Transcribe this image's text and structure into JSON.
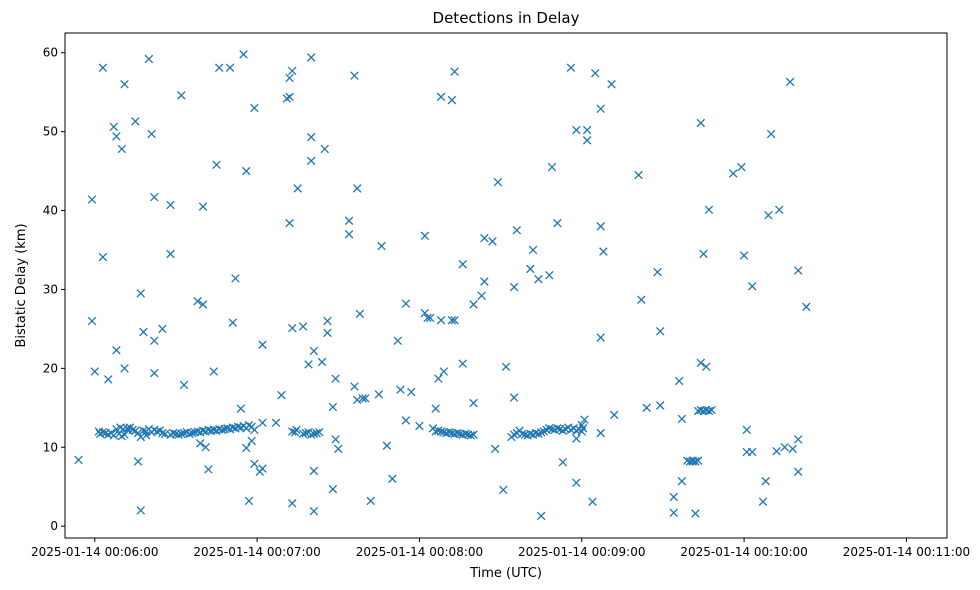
{
  "chart_data": {
    "type": "scatter",
    "title": "Detections in Delay",
    "xlabel": "Time (UTC)",
    "ylabel": "Bistatic Delay (km)",
    "x_unit": "seconds after 2025-01-14 00:06:00",
    "xlim": [
      -11,
      315
    ],
    "ylim": [
      -1.5,
      62.5
    ],
    "grid": false,
    "marker": "x",
    "color": "#1f77b4",
    "x_ticks": [
      {
        "value": 0,
        "label": "2025-01-14 00:06:00"
      },
      {
        "value": 60,
        "label": "2025-01-14 00:07:00"
      },
      {
        "value": 120,
        "label": "2025-01-14 00:08:00"
      },
      {
        "value": 180,
        "label": "2025-01-14 00:09:00"
      },
      {
        "value": 240,
        "label": "2025-01-14 00:10:00"
      },
      {
        "value": 300,
        "label": "2025-01-14 00:11:00"
      }
    ],
    "y_ticks": [
      {
        "value": 0,
        "label": "0"
      },
      {
        "value": 10,
        "label": "10"
      },
      {
        "value": 20,
        "label": "20"
      },
      {
        "value": 30,
        "label": "30"
      },
      {
        "value": 40,
        "label": "40"
      },
      {
        "value": 50,
        "label": "50"
      },
      {
        "value": 60,
        "label": "60"
      }
    ],
    "points": [
      [
        -6,
        8.4
      ],
      [
        -1,
        41.4
      ],
      [
        -1,
        26
      ],
      [
        0,
        19.6
      ],
      [
        3,
        58.1
      ],
      [
        3,
        34.1
      ],
      [
        5,
        18.6
      ],
      [
        7,
        50.6
      ],
      [
        8,
        49.4
      ],
      [
        8,
        22.3
      ],
      [
        10,
        47.8
      ],
      [
        11,
        56
      ],
      [
        11,
        20
      ],
      [
        15,
        51.3
      ],
      [
        16,
        8.2
      ],
      [
        17,
        29.5
      ],
      [
        17,
        2
      ],
      [
        18,
        24.6
      ],
      [
        19,
        11.5
      ],
      [
        20,
        59.2
      ],
      [
        21,
        49.7
      ],
      [
        22,
        19.4
      ],
      [
        22,
        23.5
      ],
      [
        22,
        41.7
      ],
      [
        25,
        25
      ],
      [
        28,
        40.7
      ],
      [
        28,
        34.5
      ],
      [
        32,
        54.6
      ],
      [
        33,
        17.9
      ],
      [
        38,
        28.5
      ],
      [
        39,
        10.5
      ],
      [
        40,
        40.5
      ],
      [
        40,
        28.1
      ],
      [
        41,
        10
      ],
      [
        42,
        7.2
      ],
      [
        44,
        19.6
      ],
      [
        45,
        45.8
      ],
      [
        46,
        58.1
      ],
      [
        50,
        58.1
      ],
      [
        51,
        25.8
      ],
      [
        52,
        31.4
      ],
      [
        54,
        14.9
      ],
      [
        55,
        59.8
      ],
      [
        56,
        9.9
      ],
      [
        56,
        45
      ],
      [
        57,
        3.2
      ],
      [
        58,
        10.8
      ],
      [
        59,
        7.9
      ],
      [
        59,
        53
      ],
      [
        61,
        6.9
      ],
      [
        62,
        23
      ],
      [
        62,
        7.3
      ],
      [
        62,
        13.1
      ],
      [
        67,
        13.1
      ],
      [
        69,
        16.6
      ],
      [
        71,
        54.2
      ],
      [
        72,
        56.8
      ],
      [
        72,
        54.4
      ],
      [
        72,
        38.4
      ],
      [
        73,
        57.7
      ],
      [
        73,
        25.1
      ],
      [
        73,
        2.9
      ],
      [
        73,
        12
      ],
      [
        75,
        42.8
      ],
      [
        77,
        25.3
      ],
      [
        79,
        20.5
      ],
      [
        80,
        59.4
      ],
      [
        80,
        49.3
      ],
      [
        80,
        46.3
      ],
      [
        81,
        22.2
      ],
      [
        81,
        7
      ],
      [
        81,
        1.9
      ],
      [
        84,
        20.8
      ],
      [
        85,
        47.8
      ],
      [
        86,
        24.5
      ],
      [
        86,
        26
      ],
      [
        88,
        15.1
      ],
      [
        88,
        4.7
      ],
      [
        89,
        18.7
      ],
      [
        89,
        11
      ],
      [
        90,
        9.8
      ],
      [
        94,
        38.7
      ],
      [
        94,
        37
      ],
      [
        96,
        17.7
      ],
      [
        96,
        57.1
      ],
      [
        97,
        16
      ],
      [
        97,
        42.8
      ],
      [
        98,
        26.9
      ],
      [
        99,
        16.2
      ],
      [
        100,
        16.2
      ],
      [
        102,
        3.2
      ],
      [
        105,
        16.7
      ],
      [
        106,
        35.5
      ],
      [
        108,
        10.2
      ],
      [
        110,
        6
      ],
      [
        112,
        23.5
      ],
      [
        113,
        17.3
      ],
      [
        115,
        13.4
      ],
      [
        115,
        28.2
      ],
      [
        117,
        17
      ],
      [
        120,
        12.7
      ],
      [
        122,
        36.8
      ],
      [
        122,
        27
      ],
      [
        123,
        26.4
      ],
      [
        124,
        26.4
      ],
      [
        125,
        12.4
      ],
      [
        126,
        14.9
      ],
      [
        127,
        18.7
      ],
      [
        128,
        26.1
      ],
      [
        128,
        54.4
      ],
      [
        129,
        19.6
      ],
      [
        132,
        26.1
      ],
      [
        132,
        54
      ],
      [
        133,
        26.1
      ],
      [
        133,
        57.6
      ],
      [
        136,
        20.6
      ],
      [
        136,
        33.2
      ],
      [
        140,
        28.1
      ],
      [
        140,
        15.6
      ],
      [
        143,
        29.2
      ],
      [
        144,
        31
      ],
      [
        144,
        36.5
      ],
      [
        147,
        36.1
      ],
      [
        148,
        9.8
      ],
      [
        149,
        43.6
      ],
      [
        151,
        4.6
      ],
      [
        152,
        20.2
      ],
      [
        155,
        30.3
      ],
      [
        155,
        16.3
      ],
      [
        156,
        37.5
      ],
      [
        161,
        32.6
      ],
      [
        162,
        35
      ],
      [
        164,
        31.3
      ],
      [
        165,
        1.3
      ],
      [
        168,
        31.8
      ],
      [
        169,
        45.5
      ],
      [
        171,
        38.4
      ],
      [
        173,
        8.1
      ],
      [
        176,
        58.1
      ],
      [
        178,
        5.5
      ],
      [
        178,
        50.2
      ],
      [
        178,
        11.1
      ],
      [
        180,
        12.8
      ],
      [
        181,
        13.5
      ],
      [
        182,
        50.2
      ],
      [
        182,
        48.9
      ],
      [
        184,
        3.1
      ],
      [
        185,
        57.4
      ],
      [
        187,
        38
      ],
      [
        187,
        52.9
      ],
      [
        187,
        23.9
      ],
      [
        187,
        11.8
      ],
      [
        188,
        34.8
      ],
      [
        191,
        56
      ],
      [
        192,
        14.1
      ],
      [
        201,
        44.5
      ],
      [
        202,
        28.7
      ],
      [
        204,
        15
      ],
      [
        208,
        32.2
      ],
      [
        209,
        15.3
      ],
      [
        209,
        24.7
      ],
      [
        214,
        3.7
      ],
      [
        214,
        1.7
      ],
      [
        216,
        18.4
      ],
      [
        217,
        13.6
      ],
      [
        217,
        5.7
      ],
      [
        219,
        8.3
      ],
      [
        221,
        8.2
      ],
      [
        222,
        8.2
      ],
      [
        222,
        1.6
      ],
      [
        223,
        14.6
      ],
      [
        224,
        51.1
      ],
      [
        224,
        20.7
      ],
      [
        225,
        34.5
      ],
      [
        226,
        20.2
      ],
      [
        227,
        40.1
      ],
      [
        236,
        44.7
      ],
      [
        239,
        45.5
      ],
      [
        240,
        34.3
      ],
      [
        241,
        12.2
      ],
      [
        241,
        9.4
      ],
      [
        243,
        9.4
      ],
      [
        243,
        30.4
      ],
      [
        247,
        3.1
      ],
      [
        248,
        5.7
      ],
      [
        249,
        39.4
      ],
      [
        250,
        49.7
      ],
      [
        252,
        9.5
      ],
      [
        253,
        40.1
      ],
      [
        255,
        10
      ],
      [
        257,
        56.3
      ],
      [
        258,
        9.8
      ],
      [
        260,
        6.9
      ],
      [
        260,
        32.4
      ],
      [
        260,
        11
      ],
      [
        263,
        27.8
      ],
      [
        1.5,
        12
      ],
      [
        2,
        11.7
      ],
      [
        3,
        11.9
      ],
      [
        4,
        11.8
      ],
      [
        5,
        11.6
      ],
      [
        6,
        11.8
      ],
      [
        7,
        11.5
      ],
      [
        8,
        12.3
      ],
      [
        9,
        11.7
      ],
      [
        9.5,
        12.5
      ],
      [
        10,
        11.4
      ],
      [
        10.5,
        12.3
      ],
      [
        11,
        11.6
      ],
      [
        12,
        12.4
      ],
      [
        12.5,
        12.1
      ],
      [
        13,
        12.5
      ],
      [
        14,
        12.2
      ],
      [
        15,
        12.1
      ],
      [
        16,
        11.8
      ],
      [
        17,
        11.3
      ],
      [
        18,
        12.1
      ],
      [
        19,
        12
      ],
      [
        20,
        12.3
      ],
      [
        21,
        11.9
      ],
      [
        22,
        12.2
      ],
      [
        23,
        12
      ],
      [
        24,
        12.1
      ],
      [
        25,
        11.8
      ],
      [
        26,
        11.7
      ],
      [
        28,
        11.6
      ],
      [
        29,
        11.8
      ],
      [
        30,
        11.7
      ],
      [
        31,
        11.6
      ],
      [
        32,
        11.7
      ],
      [
        33,
        11.8
      ],
      [
        34,
        11.9
      ],
      [
        35,
        11.7
      ],
      [
        36,
        11.8
      ],
      [
        37,
        11.9
      ],
      [
        38,
        12
      ],
      [
        39,
        11.9
      ],
      [
        40,
        12.1
      ],
      [
        41,
        12
      ],
      [
        42,
        12.2
      ],
      [
        43,
        12.1
      ],
      [
        44,
        12.2
      ],
      [
        45,
        12.1
      ],
      [
        46,
        12.3
      ],
      [
        47,
        12.2
      ],
      [
        48,
        12.3
      ],
      [
        49,
        12.4
      ],
      [
        50,
        12.3
      ],
      [
        51,
        12.5
      ],
      [
        52,
        12.4
      ],
      [
        53,
        12.6
      ],
      [
        54,
        12.5
      ],
      [
        55,
        12.7
      ],
      [
        56,
        12.4
      ],
      [
        57,
        12.8
      ],
      [
        58,
        12.6
      ],
      [
        59,
        12.2
      ],
      [
        74,
        11.9
      ],
      [
        74.5,
        12.2
      ],
      [
        77,
        11.7
      ],
      [
        78,
        11.8
      ],
      [
        79,
        11.9
      ],
      [
        80,
        11.6
      ],
      [
        81,
        11.7
      ],
      [
        82,
        11.8
      ],
      [
        83,
        11.9
      ],
      [
        126,
        12
      ],
      [
        127,
        12.1
      ],
      [
        128,
        12
      ],
      [
        129,
        11.9
      ],
      [
        130,
        11.8
      ],
      [
        131,
        11.9
      ],
      [
        132,
        11.8
      ],
      [
        133,
        11.7
      ],
      [
        134,
        11.8
      ],
      [
        135,
        11.7
      ],
      [
        136,
        11.6
      ],
      [
        137,
        11.7
      ],
      [
        138,
        11.6
      ],
      [
        139,
        11.5
      ],
      [
        140,
        11.6
      ],
      [
        154,
        11.3
      ],
      [
        155,
        11.6
      ],
      [
        156,
        11.8
      ],
      [
        157,
        12.1
      ],
      [
        158,
        11.7
      ],
      [
        159,
        11.6
      ],
      [
        160,
        11.5
      ],
      [
        161,
        11.7
      ],
      [
        162,
        11.6
      ],
      [
        163,
        11.8
      ],
      [
        164,
        11.7
      ],
      [
        165,
        11.9
      ],
      [
        166,
        12
      ],
      [
        167,
        12.2
      ],
      [
        168,
        12.4
      ],
      [
        169,
        12.3
      ],
      [
        170,
        12.2
      ],
      [
        171,
        12.4
      ],
      [
        172,
        12.3
      ],
      [
        173,
        12.1
      ],
      [
        174,
        12.3
      ],
      [
        175,
        12.5
      ],
      [
        176,
        12.2
      ],
      [
        177,
        12.4
      ],
      [
        178,
        12.1
      ],
      [
        179,
        12.3
      ],
      [
        180,
        12
      ],
      [
        180.5,
        12.4
      ],
      [
        224,
        14.7
      ],
      [
        225,
        14.6
      ],
      [
        226,
        14.7
      ],
      [
        227,
        14.6
      ],
      [
        228,
        14.7
      ],
      [
        221,
        8.3
      ],
      [
        220,
        8.2
      ],
      [
        223,
        8.3
      ]
    ]
  }
}
